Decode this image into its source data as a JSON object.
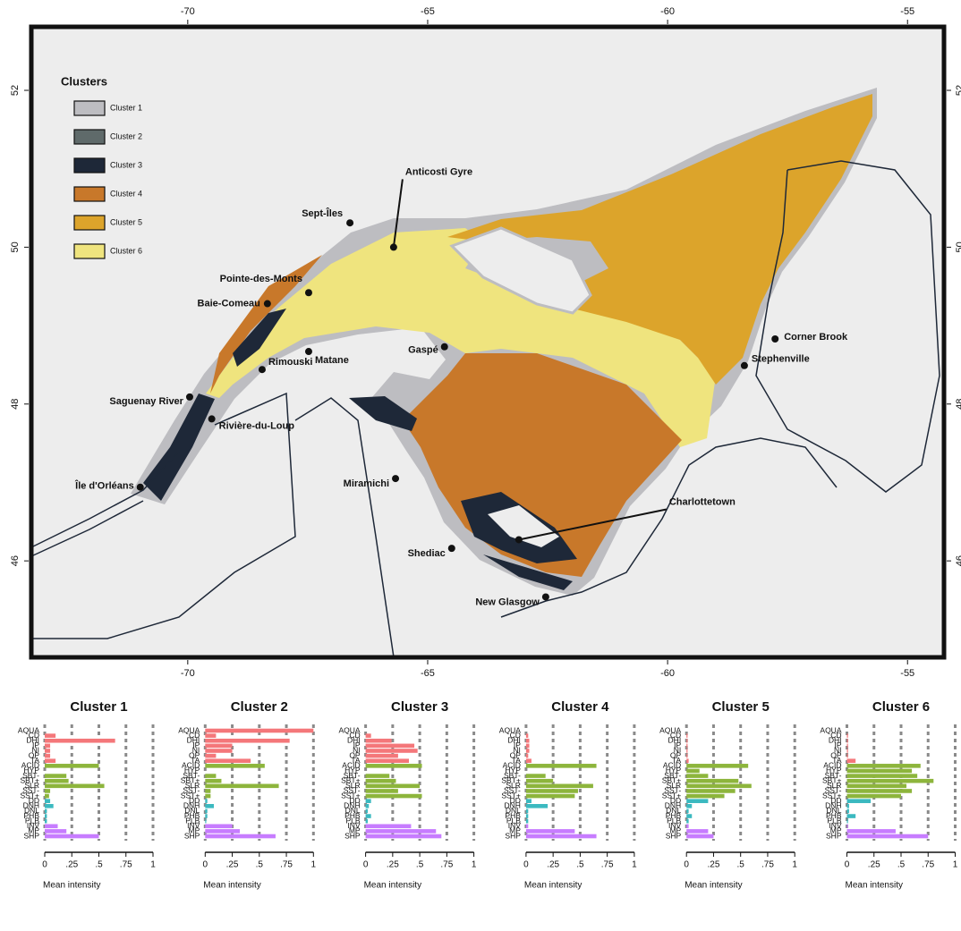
{
  "map": {
    "legend_title": "Clusters",
    "legend": [
      {
        "name": "Cluster 1",
        "color": "#bdbdc1"
      },
      {
        "name": "Cluster 2",
        "color": "#5f6a6a"
      },
      {
        "name": "Cluster 3",
        "color": "#1e2838"
      },
      {
        "name": "Cluster 4",
        "color": "#c8782a"
      },
      {
        "name": "Cluster 5",
        "color": "#dca42b"
      },
      {
        "name": "Cluster 6",
        "color": "#efe47e"
      }
    ],
    "xlim": [
      -73.26,
      -54.24
    ],
    "ylim": [
      44.77,
      52.81
    ],
    "xticks": [
      -70,
      -65,
      -60,
      -55
    ],
    "yticks": [
      52,
      50,
      48,
      46
    ],
    "places": [
      {
        "name": "Sept-Îles",
        "lon": -66.62,
        "lat": 50.31
      },
      {
        "name": "Pointe-des-Monts",
        "lon": -67.48,
        "lat": 49.42
      },
      {
        "name": "Baie-Comeau",
        "lon": -68.34,
        "lat": 49.28
      },
      {
        "name": "Matane",
        "lon": -67.48,
        "lat": 48.67
      },
      {
        "name": "Rimouski",
        "lon": -68.45,
        "lat": 48.44
      },
      {
        "name": "Saguenay River",
        "lon": -69.96,
        "lat": 48.09
      },
      {
        "name": "Rivière-du-Loup",
        "lon": -69.5,
        "lat": 47.81
      },
      {
        "name": "Île d'Orléans",
        "lon": -70.99,
        "lat": 46.94
      },
      {
        "name": "Gaspé",
        "lon": -64.65,
        "lat": 48.73
      },
      {
        "name": "Miramichi",
        "lon": -65.67,
        "lat": 47.05
      },
      {
        "name": "Shediac",
        "lon": -64.5,
        "lat": 46.16
      },
      {
        "name": "New Glasgow",
        "lon": -62.54,
        "lat": 45.54
      },
      {
        "name": "Corner Brook",
        "lon": -57.76,
        "lat": 48.83
      },
      {
        "name": "Stephenville",
        "lon": -58.4,
        "lat": 48.49
      },
      {
        "name": "Charlottetown",
        "lon": -63.1,
        "lat": 46.27
      },
      {
        "name": "Anticosti Gyre",
        "lon": -65.71,
        "lat": 50.0
      }
    ]
  },
  "chart_data": [
    {
      "type": "bar",
      "title": "Cluster 1",
      "x_label": "Mean intensity",
      "categories": [
        "AQUA",
        "CD",
        "DHI",
        "IP",
        "NI",
        "OP",
        "TA",
        "ACID",
        "HYP",
        "SBT-",
        "SBT+",
        "SLR",
        "SST-",
        "SST+",
        "DD",
        "DNH",
        "DNL",
        "PHB",
        "PLB",
        "INV",
        "MP",
        "SHP"
      ],
      "values": [
        0,
        0.1,
        0.65,
        0.05,
        0.05,
        0.05,
        0.1,
        0.5,
        0,
        0.2,
        0.22,
        0.55,
        0.05,
        0.04,
        0.05,
        0.08,
        0.02,
        0.02,
        0.02,
        0.12,
        0.2,
        0.5
      ],
      "colors": [
        "#f4777a",
        "#f4777a",
        "#f4777a",
        "#f4777a",
        "#f4777a",
        "#f4777a",
        "#f4777a",
        "#8db53c",
        "#8db53c",
        "#8db53c",
        "#8db53c",
        "#8db53c",
        "#8db53c",
        "#8db53c",
        "#3bb9c0",
        "#3bb9c0",
        "#3bb9c0",
        "#3bb9c0",
        "#3bb9c0",
        "#c77cff",
        "#c77cff",
        "#c77cff"
      ],
      "xlim": [
        0,
        1
      ],
      "xticks": [
        0,
        {
          "value": 0.25,
          "label": ".25"
        },
        {
          "value": 0.5,
          "label": ".5"
        },
        {
          "value": 0.75,
          "label": ".75"
        },
        1
      ],
      "grid": true
    },
    {
      "type": "bar",
      "title": "Cluster 2",
      "x_label": "Mean intensity",
      "categories": [
        "AQUA",
        "CD",
        "DHI",
        "IP",
        "NI",
        "OP",
        "TA",
        "ACID",
        "HYP",
        "SBT-",
        "SBT+",
        "SLR",
        "SST-",
        "SST+",
        "DD",
        "DNH",
        "DNL",
        "PHB",
        "PLB",
        "INV",
        "MP",
        "SHP"
      ],
      "values": [
        1,
        0.1,
        0.78,
        0.25,
        0.25,
        0.1,
        0.42,
        0.55,
        0,
        0.1,
        0.15,
        0.68,
        0.05,
        0.05,
        0.02,
        0.08,
        0.02,
        0.02,
        0.01,
        0.25,
        0.32,
        0.65
      ],
      "colors": [
        "#f4777a",
        "#f4777a",
        "#f4777a",
        "#f4777a",
        "#f4777a",
        "#f4777a",
        "#f4777a",
        "#8db53c",
        "#8db53c",
        "#8db53c",
        "#8db53c",
        "#8db53c",
        "#8db53c",
        "#8db53c",
        "#3bb9c0",
        "#3bb9c0",
        "#3bb9c0",
        "#3bb9c0",
        "#3bb9c0",
        "#c77cff",
        "#c77cff",
        "#c77cff"
      ],
      "xlim": [
        0,
        1
      ],
      "xticks": [
        0,
        {
          "value": 0.25,
          "label": ".25"
        },
        {
          "value": 0.5,
          "label": ".5"
        },
        {
          "value": 0.75,
          "label": ".75"
        },
        1
      ],
      "grid": true
    },
    {
      "type": "bar",
      "title": "Cluster 3",
      "x_label": "Mean intensity",
      "categories": [
        "AQUA",
        "CD",
        "DHI",
        "IP",
        "NI",
        "OP",
        "TA",
        "ACID",
        "HYP",
        "SBT-",
        "SBT+",
        "SLR",
        "SST-",
        "SST+",
        "DD",
        "DNH",
        "DNL",
        "PHB",
        "PLB",
        "INV",
        "MP",
        "SHP"
      ],
      "values": [
        0,
        0.05,
        0.24,
        0.45,
        0.48,
        0.3,
        0.4,
        0.52,
        0,
        0.22,
        0.28,
        0.5,
        0.3,
        0.52,
        0.05,
        0.03,
        0.02,
        0.05,
        0.02,
        0.42,
        0.65,
        0.7
      ],
      "colors": [
        "#f4777a",
        "#f4777a",
        "#f4777a",
        "#f4777a",
        "#f4777a",
        "#f4777a",
        "#f4777a",
        "#8db53c",
        "#8db53c",
        "#8db53c",
        "#8db53c",
        "#8db53c",
        "#8db53c",
        "#8db53c",
        "#3bb9c0",
        "#3bb9c0",
        "#3bb9c0",
        "#3bb9c0",
        "#3bb9c0",
        "#c77cff",
        "#c77cff",
        "#c77cff"
      ],
      "xlim": [
        0,
        1
      ],
      "xticks": [
        0,
        {
          "value": 0.25,
          "label": ".25"
        },
        {
          "value": 0.5,
          "label": ".5"
        },
        {
          "value": 0.75,
          "label": ".75"
        },
        1
      ],
      "grid": true
    },
    {
      "type": "bar",
      "title": "Cluster 4",
      "x_label": "Mean intensity",
      "categories": [
        "AQUA",
        "CD",
        "DHI",
        "IP",
        "NI",
        "OP",
        "TA",
        "ACID",
        "HYP",
        "SBT-",
        "SBT+",
        "SLR",
        "SST-",
        "SST+",
        "DD",
        "DNH",
        "DNL",
        "PHB",
        "PLB",
        "INV",
        "MP",
        "SHP"
      ],
      "values": [
        0,
        0.02,
        0.03,
        0.03,
        0.03,
        0.02,
        0.05,
        0.65,
        0,
        0.18,
        0.25,
        0.62,
        0.48,
        0.45,
        0.05,
        0.2,
        0.02,
        0.02,
        0.02,
        0.02,
        0.45,
        0.65
      ],
      "colors": [
        "#f4777a",
        "#f4777a",
        "#f4777a",
        "#f4777a",
        "#f4777a",
        "#f4777a",
        "#f4777a",
        "#8db53c",
        "#8db53c",
        "#8db53c",
        "#8db53c",
        "#8db53c",
        "#8db53c",
        "#8db53c",
        "#3bb9c0",
        "#3bb9c0",
        "#3bb9c0",
        "#3bb9c0",
        "#3bb9c0",
        "#c77cff",
        "#c77cff",
        "#c77cff"
      ],
      "xlim": [
        0,
        1
      ],
      "xticks": [
        0,
        {
          "value": 0.25,
          "label": ".25"
        },
        {
          "value": 0.5,
          "label": ".5"
        },
        {
          "value": 0.75,
          "label": ".75"
        },
        1
      ],
      "grid": true
    },
    {
      "type": "bar",
      "title": "Cluster 5",
      "x_label": "Mean intensity",
      "categories": [
        "AQUA",
        "CD",
        "DHI",
        "IP",
        "NI",
        "OP",
        "TA",
        "ACID",
        "HYP",
        "SBT-",
        "SBT+",
        "SLR",
        "SST-",
        "SST+",
        "DD",
        "DNH",
        "DNL",
        "PHB",
        "PLB",
        "INV",
        "MP",
        "SHP"
      ],
      "values": [
        0,
        0.01,
        0.01,
        0.01,
        0.01,
        0.01,
        0.02,
        0.57,
        0.12,
        0.2,
        0.48,
        0.6,
        0.45,
        0.35,
        0.2,
        0.05,
        0.02,
        0.05,
        0.02,
        0.02,
        0.2,
        0.25
      ],
      "colors": [
        "#f4777a",
        "#f4777a",
        "#f4777a",
        "#f4777a",
        "#f4777a",
        "#f4777a",
        "#f4777a",
        "#8db53c",
        "#8db53c",
        "#8db53c",
        "#8db53c",
        "#8db53c",
        "#8db53c",
        "#8db53c",
        "#3bb9c0",
        "#3bb9c0",
        "#3bb9c0",
        "#3bb9c0",
        "#3bb9c0",
        "#c77cff",
        "#c77cff",
        "#c77cff"
      ],
      "xlim": [
        0,
        1
      ],
      "xticks": [
        0,
        {
          "value": 0.25,
          "label": ".25"
        },
        {
          "value": 0.5,
          "label": ".5"
        },
        {
          "value": 0.75,
          "label": ".75"
        },
        1
      ],
      "grid": true
    },
    {
      "type": "bar",
      "title": "Cluster 6",
      "x_label": "Mean intensity",
      "categories": [
        "AQUA",
        "CD",
        "DHI",
        "IP",
        "NI",
        "OP",
        "TA",
        "ACID",
        "HYP",
        "SBT-",
        "SBT+",
        "SLR",
        "SST-",
        "SST+",
        "DD",
        "DNH",
        "DNL",
        "PHB",
        "PLB",
        "INV",
        "MP",
        "SHP"
      ],
      "values": [
        0,
        0.01,
        0.01,
        0.01,
        0.01,
        0.01,
        0.08,
        0.68,
        0.6,
        0.65,
        0.8,
        0.55,
        0.6,
        0.5,
        0.22,
        0.02,
        0.02,
        0.08,
        0.01,
        0.01,
        0.45,
        0.75
      ],
      "colors": [
        "#f4777a",
        "#f4777a",
        "#f4777a",
        "#f4777a",
        "#f4777a",
        "#f4777a",
        "#f4777a",
        "#8db53c",
        "#8db53c",
        "#8db53c",
        "#8db53c",
        "#8db53c",
        "#8db53c",
        "#8db53c",
        "#3bb9c0",
        "#3bb9c0",
        "#3bb9c0",
        "#3bb9c0",
        "#3bb9c0",
        "#c77cff",
        "#c77cff",
        "#c77cff"
      ],
      "xlim": [
        0,
        1
      ],
      "xticks": [
        0,
        {
          "value": 0.25,
          "label": ".25"
        },
        {
          "value": 0.5,
          "label": ".5"
        },
        {
          "value": 0.75,
          "label": ".75"
        },
        1
      ],
      "grid": true
    }
  ]
}
